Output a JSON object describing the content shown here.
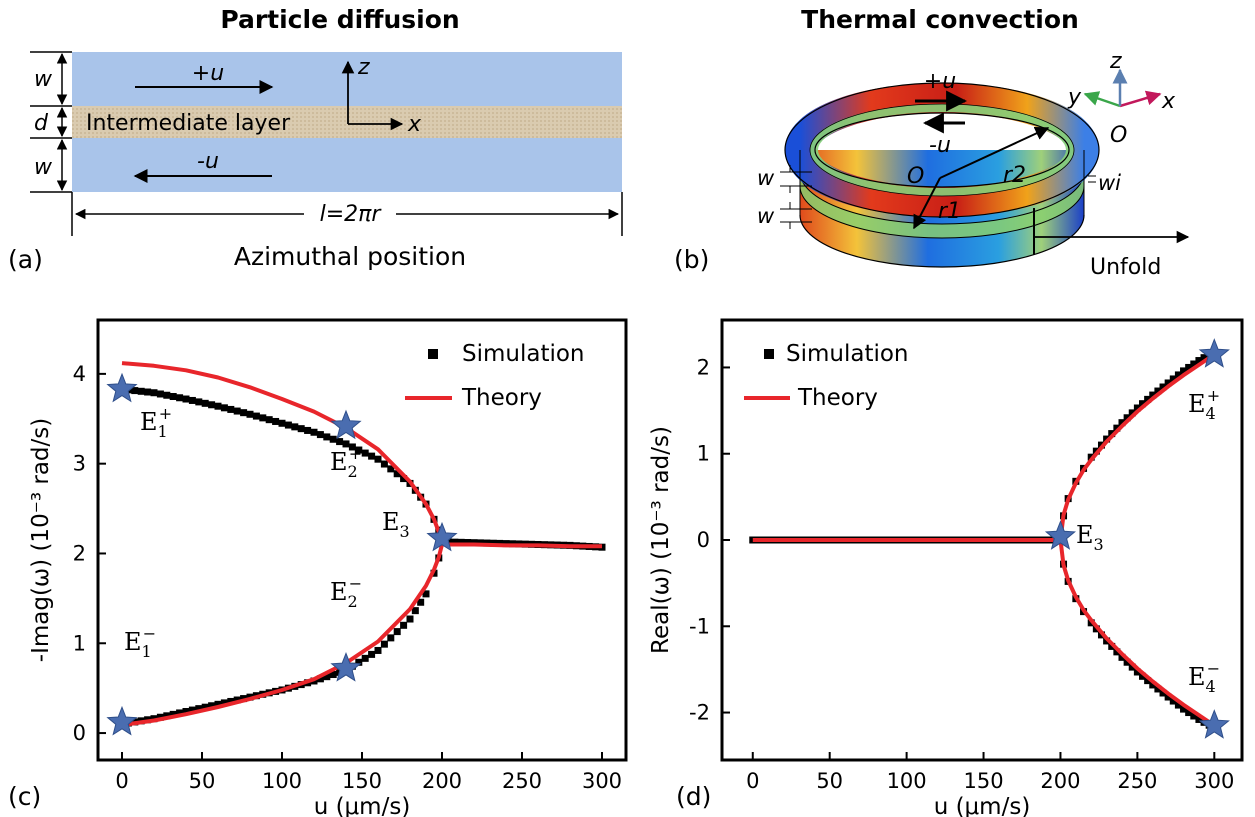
{
  "panel_a": {
    "title": "Particle diffusion",
    "panel_label": "(a)",
    "plus_u": "+u",
    "minus_u": "-u",
    "layer_label": "Intermediate layer",
    "w_label": "w",
    "d_label": "d",
    "z_label": "z",
    "x_label": "x",
    "length_label": "l=2πr",
    "axis_caption": "Azimuthal position",
    "colors": {
      "fluid": "#a9c4ea",
      "layer": "#d9c9ae"
    }
  },
  "panel_b": {
    "title": "Thermal convection",
    "panel_label": "(b)",
    "plus_u": "+u",
    "minus_u": "-u",
    "origin_label": "O",
    "axis_origin_label": "O",
    "r1_label": "r1",
    "r2_label": "r2",
    "w_label": "w",
    "wi_label": "wi",
    "x_label": "x",
    "y_label": "y",
    "z_label": "z",
    "unfold_label": "Unfold",
    "colors": {
      "x_axis": "#c2185b",
      "y_axis": "#3aa64a",
      "z_axis": "#5b7fb0"
    }
  },
  "chart_data": [
    {
      "type": "scatter",
      "panel_label": "(c)",
      "xlabel": "u (μm/s)",
      "ylabel": "-Imag(ω)  (10⁻³ rad/s)",
      "xlim": [
        -15,
        315
      ],
      "ylim": [
        -0.3,
        4.6
      ],
      "xticks": [
        0,
        50,
        100,
        150,
        200,
        250,
        300
      ],
      "yticks": [
        0,
        1,
        2,
        3,
        4
      ],
      "legend": {
        "placement": "top-right",
        "entries": [
          "Simulation",
          "Theory"
        ]
      },
      "series": [
        {
          "name": "Simulation",
          "style": "square-markers",
          "color": "#000000",
          "branches": [
            {
              "x": [
                0,
                20,
                40,
                60,
                80,
                100,
                120,
                140,
                160,
                180,
                190,
                195,
                198,
                200,
                220,
                240,
                260,
                280,
                300
              ],
              "y": [
                3.83,
                3.79,
                3.72,
                3.64,
                3.55,
                3.45,
                3.35,
                3.22,
                3.05,
                2.78,
                2.55,
                2.38,
                2.26,
                2.13,
                2.12,
                2.11,
                2.1,
                2.09,
                2.07
              ]
            },
            {
              "x": [
                0,
                20,
                40,
                60,
                80,
                100,
                120,
                140,
                160,
                180,
                190,
                195,
                198
              ],
              "y": [
                0.1,
                0.16,
                0.24,
                0.32,
                0.4,
                0.48,
                0.58,
                0.7,
                0.92,
                1.27,
                1.55,
                1.78,
                1.95
              ]
            }
          ]
        },
        {
          "name": "Theory",
          "style": "line",
          "color": "#e8262b",
          "branches": [
            {
              "x": [
                0,
                20,
                40,
                60,
                80,
                100,
                120,
                140,
                160,
                180,
                190,
                195,
                198,
                200,
                220,
                240,
                260,
                280,
                300
              ],
              "y": [
                4.12,
                4.09,
                4.04,
                3.96,
                3.85,
                3.72,
                3.58,
                3.4,
                3.16,
                2.8,
                2.55,
                2.38,
                2.24,
                2.1,
                2.1,
                2.09,
                2.09,
                2.08,
                2.08
              ]
            },
            {
              "x": [
                0,
                20,
                40,
                60,
                80,
                100,
                120,
                140,
                160,
                180,
                190,
                195,
                198,
                200
              ],
              "y": [
                0.09,
                0.14,
                0.21,
                0.29,
                0.38,
                0.48,
                0.6,
                0.78,
                1.02,
                1.38,
                1.64,
                1.82,
                1.96,
                2.1
              ]
            }
          ]
        }
      ],
      "points": [
        {
          "name": "E",
          "sub": "1",
          "sup": "+",
          "x": 0,
          "y": 3.83
        },
        {
          "name": "E",
          "sub": "2",
          "sup": "+",
          "x": 140,
          "y": 3.42
        },
        {
          "name": "E",
          "sub": "3",
          "sup": "",
          "x": 200,
          "y": 2.17
        },
        {
          "name": "E",
          "sub": "2",
          "sup": "−",
          "x": 140,
          "y": 0.72
        },
        {
          "name": "E",
          "sub": "1",
          "sup": "−",
          "x": 0,
          "y": 0.12
        }
      ]
    },
    {
      "type": "scatter",
      "panel_label": "(d)",
      "xlabel": "u (μm/s)",
      "ylabel": "Real(ω)  (10⁻³ rad/s)",
      "xlim": [
        -20,
        318
      ],
      "ylim": [
        -2.55,
        2.55
      ],
      "xticks": [
        0,
        50,
        100,
        150,
        200,
        250,
        300
      ],
      "yticks": [
        -2,
        -1,
        0,
        1,
        2
      ],
      "legend": {
        "placement": "top-left",
        "entries": [
          "Simulation",
          "Theory"
        ]
      },
      "series": [
        {
          "name": "Simulation",
          "style": "square-markers",
          "color": "#000000",
          "branches": [
            {
              "x": [
                0,
                200
              ],
              "y": [
                0,
                0
              ]
            },
            {
              "x": [
                200,
                202,
                205,
                210,
                215,
                220,
                230,
                240,
                250,
                260,
                270,
                280,
                290,
                300
              ],
              "y": [
                0,
                0.28,
                0.48,
                0.68,
                0.83,
                0.96,
                1.17,
                1.36,
                1.53,
                1.68,
                1.82,
                1.96,
                2.08,
                2.18
              ]
            },
            {
              "x": [
                200,
                202,
                205,
                210,
                215,
                220,
                230,
                240,
                250,
                260,
                270,
                280,
                290,
                300
              ],
              "y": [
                0,
                -0.28,
                -0.48,
                -0.68,
                -0.83,
                -0.96,
                -1.17,
                -1.36,
                -1.53,
                -1.68,
                -1.82,
                -1.96,
                -2.08,
                -2.18
              ]
            }
          ]
        },
        {
          "name": "Theory",
          "style": "line",
          "color": "#e8262b",
          "branches": [
            {
              "x": [
                0,
                200
              ],
              "y": [
                0,
                0
              ]
            },
            {
              "x": [
                200,
                202,
                205,
                210,
                215,
                220,
                230,
                240,
                250,
                260,
                270,
                280,
                290,
                300
              ],
              "y": [
                0,
                0.29,
                0.47,
                0.66,
                0.81,
                0.93,
                1.14,
                1.32,
                1.49,
                1.64,
                1.78,
                1.91,
                2.03,
                2.15
              ]
            },
            {
              "x": [
                200,
                202,
                205,
                210,
                215,
                220,
                230,
                240,
                250,
                260,
                270,
                280,
                290,
                300
              ],
              "y": [
                0,
                -0.29,
                -0.47,
                -0.66,
                -0.81,
                -0.93,
                -1.14,
                -1.32,
                -1.49,
                -1.64,
                -1.78,
                -1.91,
                -2.03,
                -2.15
              ]
            }
          ]
        }
      ],
      "points": [
        {
          "name": "E",
          "sub": "4",
          "sup": "+",
          "x": 300,
          "y": 2.15
        },
        {
          "name": "E",
          "sub": "3",
          "sup": "",
          "x": 200,
          "y": 0.04
        },
        {
          "name": "E",
          "sub": "4",
          "sup": "−",
          "x": 300,
          "y": -2.15
        }
      ]
    }
  ]
}
